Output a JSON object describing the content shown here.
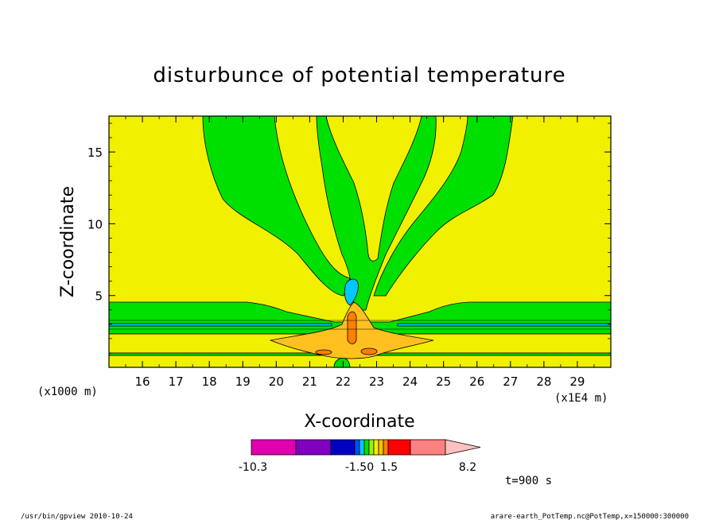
{
  "chart_data": {
    "type": "heatmap",
    "title": "disturbunce of potential temperature",
    "xlabel": "X-coordinate",
    "ylabel": "Z-coordinate",
    "x_unit_label": "(x1E4 m)",
    "y_unit_label": "(x1000 m)",
    "x_ticks": [
      "16",
      "17",
      "18",
      "19",
      "20",
      "21",
      "22",
      "23",
      "24",
      "25",
      "26",
      "27",
      "28",
      "29"
    ],
    "x_tick_values": [
      16,
      17,
      18,
      19,
      20,
      21,
      22,
      23,
      24,
      25,
      26,
      27,
      28,
      29
    ],
    "y_ticks": [
      "5",
      "10",
      "15"
    ],
    "y_tick_values": [
      5,
      10,
      15
    ],
    "xlim": [
      15,
      30
    ],
    "ylim": [
      0,
      17.5
    ],
    "colorbar": {
      "labels": [
        "-10.3",
        "-1.50",
        "1.5",
        "8.2"
      ],
      "label_values": [
        -10.3,
        -1.5,
        1.5,
        8.2
      ],
      "colors": [
        "#e000b0",
        "#8000c0",
        "#0000c0",
        "#0050ff",
        "#00c8ff",
        "#00e000",
        "#a0f000",
        "#f0f000",
        "#ffc000",
        "#ff8000",
        "#ff0000",
        "#ff8080",
        "#ffc0c0"
      ]
    },
    "colors": {
      "background": "#f0f000",
      "green": "#00e000",
      "cyan": "#00c8ff",
      "orange": "#ffc020",
      "red": "#ff8000"
    },
    "grid": false,
    "legend": "bottom-center"
  },
  "annotation": "t=900 s",
  "footer_left": "/usr/bin/gpview  2010-10-24",
  "footer_right": "arare-earth_PotTemp.nc@PotTemp,x=150000:300000"
}
